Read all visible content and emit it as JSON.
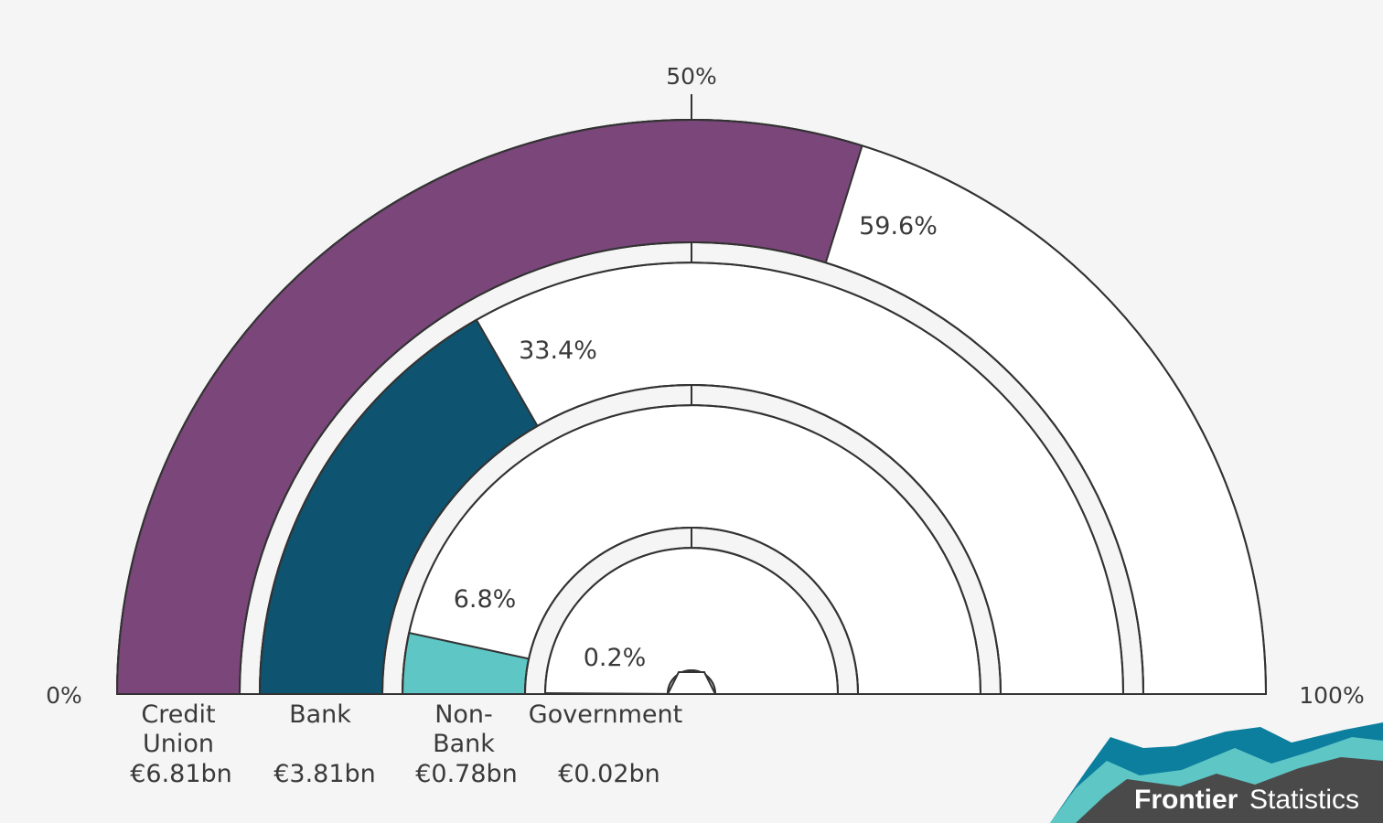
{
  "chart_data": {
    "type": "gauge",
    "scale_labels": {
      "start": "0%",
      "mid": "50%",
      "end": "100%"
    },
    "series": [
      {
        "category": "Credit Union",
        "value_pct": 59.6,
        "pct_label": "59.6%",
        "amount": "€6.81bn",
        "color": "#7b477b"
      },
      {
        "category": "Bank",
        "value_pct": 33.4,
        "pct_label": "33.4%",
        "amount": "€3.81bn",
        "color": "#0e5470"
      },
      {
        "category": "Non-Bank",
        "value_pct": 6.8,
        "pct_label": "6.8%",
        "amount": "€0.78bn",
        "color": "#5ec6c4"
      },
      {
        "category": "Government",
        "value_pct": 0.2,
        "pct_label": "0.2%",
        "amount": "€0.02bn",
        "color": "#3d3d3d"
      }
    ],
    "category_lines": [
      [
        "Credit",
        "Union"
      ],
      [
        "Bank"
      ],
      [
        "Non-",
        "Bank"
      ],
      [
        "Government"
      ]
    ]
  },
  "branding": {
    "logo_bold": "Frontier",
    "logo_light": "Statistics",
    "colors": [
      "#0d7f9e",
      "#5ec6c4",
      "#4a4a4a"
    ]
  }
}
